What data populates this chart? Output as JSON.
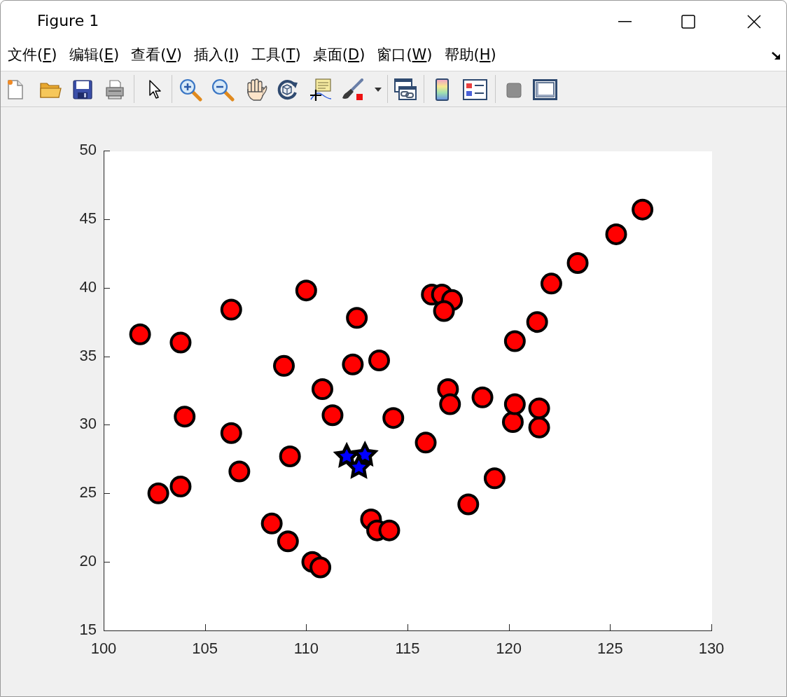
{
  "chart_data": {
    "type": "scatter",
    "annotations": [
      "Figure 1",
      "文件(F)",
      "编辑(E)",
      "查看(V)",
      "插入(I)",
      "工具(T)",
      "桌面(D)",
      "窗口(W)",
      "帮助(H)"
    ],
    "xlim": [
      100,
      130
    ],
    "xticks": [
      100,
      105,
      110,
      115,
      120,
      125,
      130
    ],
    "ylim": [
      15,
      50
    ],
    "yticks": [
      15,
      20,
      25,
      30,
      35,
      40,
      45,
      50
    ],
    "series": [
      {
        "color": "#ff0000",
        "marker": "circle",
        "x": [
          101.8,
          102.7,
          103.8,
          103.8,
          104.0,
          106.3,
          106.3,
          106.7,
          108.3,
          108.9,
          109.1,
          109.2,
          110.0,
          110.3,
          110.7,
          110.8,
          111.3,
          112.5,
          112.3,
          113.6,
          113.2,
          113.5,
          114.1,
          114.3,
          115.9,
          116.2,
          116.7,
          117.2,
          116.8,
          117.0,
          117.1,
          118.0,
          118.7,
          119.3,
          120.2,
          120.3,
          120.3,
          121.4,
          121.5,
          121.5,
          122.1,
          123.4,
          125.3,
          126.6
        ],
        "values": [
          36.6,
          25.0,
          25.5,
          36.0,
          30.6,
          38.4,
          29.4,
          26.6,
          22.8,
          34.3,
          21.5,
          27.7,
          39.8,
          20.0,
          19.6,
          32.6,
          30.7,
          37.8,
          34.4,
          34.7,
          23.1,
          22.3,
          22.3,
          30.5,
          28.7,
          39.5,
          39.5,
          39.1,
          38.3,
          32.6,
          31.5,
          24.2,
          32.0,
          26.1,
          30.2,
          31.5,
          36.1,
          37.5,
          31.2,
          29.8,
          40.3,
          41.8,
          43.9,
          45.7
        ]
      },
      {
        "color": "#0000ff",
        "marker": "star",
        "x": [
          112.0,
          112.9,
          112.6
        ],
        "values": [
          27.7,
          27.8,
          26.9
        ]
      }
    ]
  }
}
